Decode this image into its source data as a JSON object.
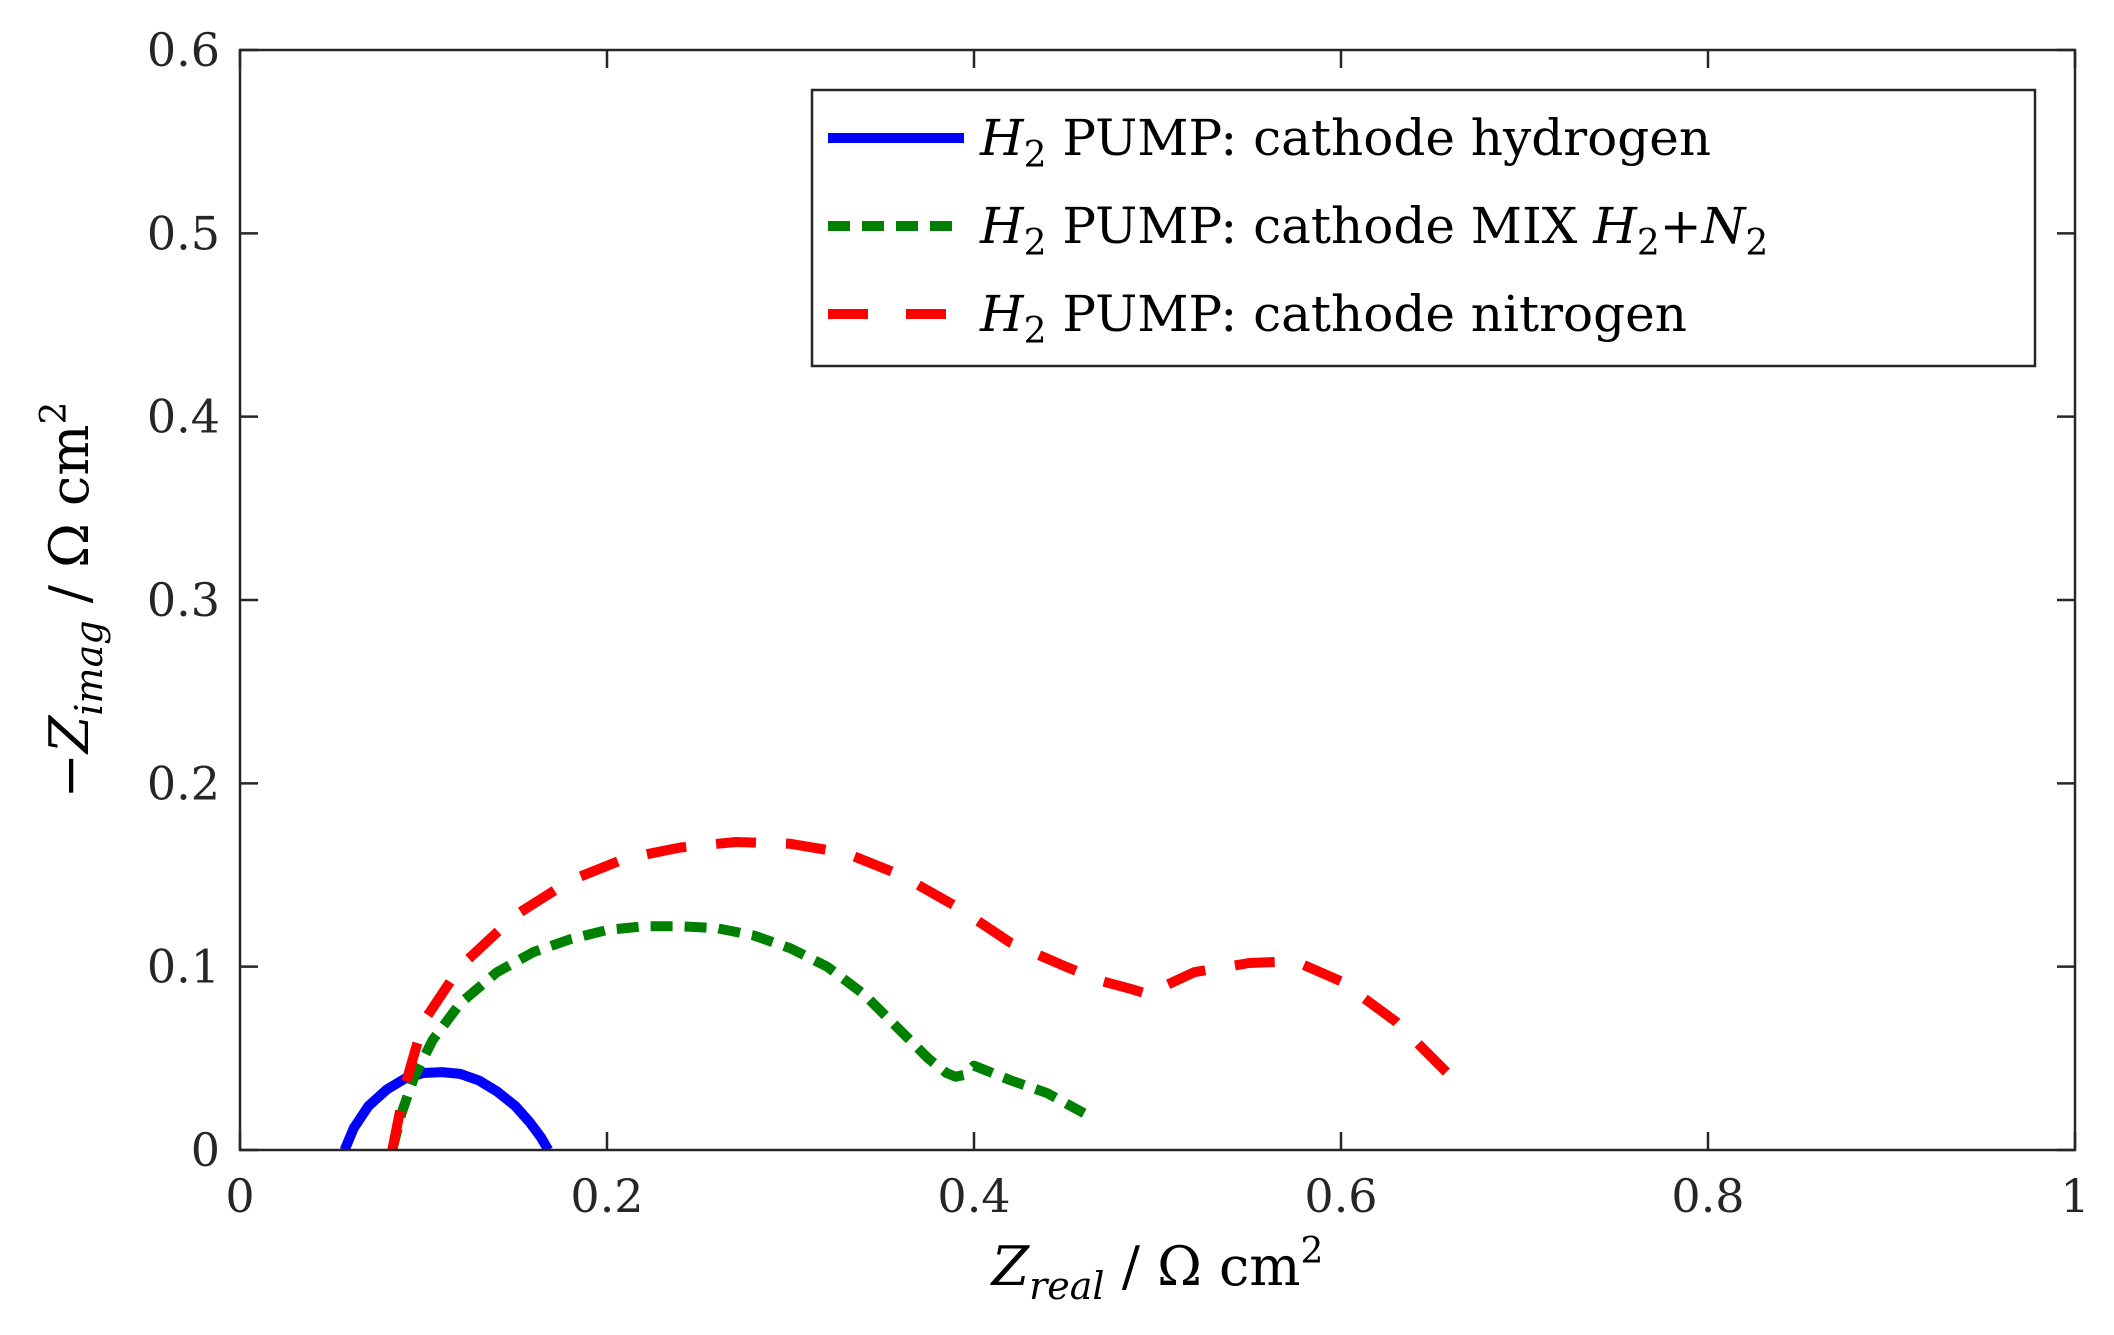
{
  "chart_data": {
    "type": "line",
    "title": "",
    "xlabel": {
      "main": "Z",
      "sub": "real",
      "unit": " / Ω cm",
      "sup": "2"
    },
    "ylabel": {
      "prefix": "−",
      "main": "Z",
      "sub": "imag",
      "unit": " / Ω cm",
      "sup": "2"
    },
    "xlim": [
      0,
      1
    ],
    "ylim": [
      0,
      0.6
    ],
    "xticks": [
      0,
      0.2,
      0.4,
      0.6,
      0.8,
      1
    ],
    "xtick_labels": [
      "0",
      "0.2",
      "0.4",
      "0.6",
      "0.8",
      "1"
    ],
    "yticks": [
      0,
      0.1,
      0.2,
      0.3,
      0.4,
      0.5,
      0.6
    ],
    "ytick_labels": [
      "0",
      "0.1",
      "0.2",
      "0.3",
      "0.4",
      "0.5",
      "0.6"
    ],
    "grid": false,
    "legend_position": "top-right",
    "series": [
      {
        "name": "H2 PUMP: cathode hydrogen",
        "legend": {
          "h": "H",
          "sub": "2",
          "text": " PUMP: cathode hydrogen"
        },
        "color": "#0000ff",
        "style": "solid",
        "x": [
          0.057,
          0.062,
          0.07,
          0.08,
          0.09,
          0.1,
          0.11,
          0.12,
          0.13,
          0.14,
          0.15,
          0.158,
          0.164,
          0.168
        ],
        "y": [
          0.0,
          0.012,
          0.024,
          0.033,
          0.039,
          0.042,
          0.0425,
          0.0415,
          0.038,
          0.032,
          0.024,
          0.015,
          0.007,
          0.0
        ]
      },
      {
        "name": "H2 PUMP: cathode MIX H2+N2",
        "legend": {
          "h": "H",
          "sub": "2",
          "text": " PUMP: cathode MIX ",
          "h2": "H",
          "sub2": "2",
          "plus": "+",
          "n": "N",
          "sub3": "2"
        },
        "color": "#008000",
        "style": "dashed",
        "x": [
          0.083,
          0.088,
          0.095,
          0.105,
          0.12,
          0.14,
          0.16,
          0.18,
          0.2,
          0.22,
          0.24,
          0.26,
          0.28,
          0.3,
          0.32,
          0.34,
          0.36,
          0.375,
          0.385,
          0.39,
          0.395,
          0.4,
          0.405,
          0.42,
          0.44,
          0.46
        ],
        "y": [
          0.0,
          0.02,
          0.04,
          0.06,
          0.08,
          0.097,
          0.108,
          0.115,
          0.12,
          0.122,
          0.122,
          0.121,
          0.117,
          0.11,
          0.1,
          0.085,
          0.065,
          0.05,
          0.042,
          0.04,
          0.041,
          0.046,
          0.044,
          0.038,
          0.031,
          0.02
        ]
      },
      {
        "name": "H2 PUMP: cathode nitrogen",
        "legend": {
          "h": "H",
          "sub": "2",
          "text": " PUMP: cathode nitrogen"
        },
        "color": "#ff0000",
        "style": "longdash",
        "x": [
          0.083,
          0.09,
          0.1,
          0.12,
          0.15,
          0.18,
          0.21,
          0.24,
          0.27,
          0.3,
          0.33,
          0.36,
          0.39,
          0.42,
          0.45,
          0.47,
          0.485,
          0.495,
          0.5,
          0.505,
          0.52,
          0.55,
          0.575,
          0.6,
          0.63,
          0.66
        ],
        "y": [
          0.0,
          0.035,
          0.07,
          0.1,
          0.128,
          0.147,
          0.159,
          0.165,
          0.168,
          0.167,
          0.162,
          0.15,
          0.133,
          0.113,
          0.1,
          0.092,
          0.088,
          0.085,
          0.085,
          0.09,
          0.097,
          0.102,
          0.103,
          0.092,
          0.07,
          0.04
        ]
      }
    ]
  }
}
